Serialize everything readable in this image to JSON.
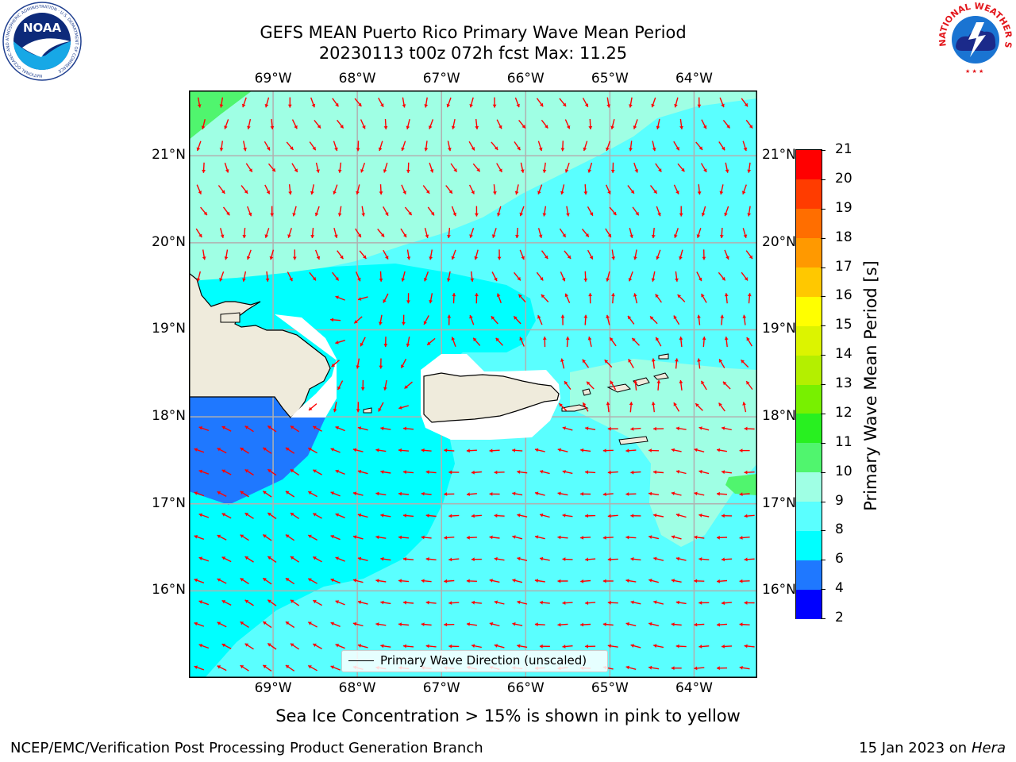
{
  "header": {
    "title_line1": "GEFS MEAN Puerto Rico Primary Wave Mean Period",
    "title_line2": "20230113 t00z 072h fcst   Max: 11.25",
    "noaa_logo_text": "NOAA",
    "noaa_ring_text": "NATIONAL OCEANIC AND ATMOSPHERIC ADMINISTRATION · U.S. DEPARTMENT OF COMMERCE",
    "nws_ring_text": "NATIONAL WEATHER SERVICE"
  },
  "map": {
    "lon_range": [
      -70.0,
      -63.25
    ],
    "lat_range": [
      15.0,
      21.75
    ],
    "lon_labels": [
      "69°W",
      "68°W",
      "67°W",
      "66°W",
      "65°W",
      "64°W"
    ],
    "lon_values": [
      -69,
      -68,
      -67,
      -66,
      -65,
      -64
    ],
    "lat_labels": [
      "21°N",
      "20°N",
      "19°N",
      "18°N",
      "17°N",
      "16°N"
    ],
    "lat_values": [
      21,
      20,
      19,
      18,
      17,
      16
    ],
    "gridlines": true,
    "arrow_color": "#ff0000",
    "land_color": "#efebdc",
    "legend_label": "Primary Wave Direction (unscaled)"
  },
  "colorbar": {
    "title": "Primary Wave Mean Period [s]",
    "levels": [
      2,
      4,
      6,
      8,
      9,
      10,
      11,
      12,
      13,
      14,
      15,
      16,
      17,
      18,
      19,
      20,
      21
    ],
    "colors": [
      "#0000ff",
      "#1f78ff",
      "#00ffff",
      "#5affff",
      "#9fffe4",
      "#50f56e",
      "#28f020",
      "#78f000",
      "#b4ef00",
      "#dcf400",
      "#ffff00",
      "#ffc800",
      "#ff9900",
      "#ff6e00",
      "#ff3c00",
      "#ff0000"
    ]
  },
  "notes": {
    "sea_ice": "Sea Ice Concentration > 15% is shown in pink to yellow"
  },
  "footer": {
    "left": "NCEP/EMC/Verification Post Processing Product Generation Branch",
    "date": "15 Jan 2023 on ",
    "machine": "Hera"
  }
}
